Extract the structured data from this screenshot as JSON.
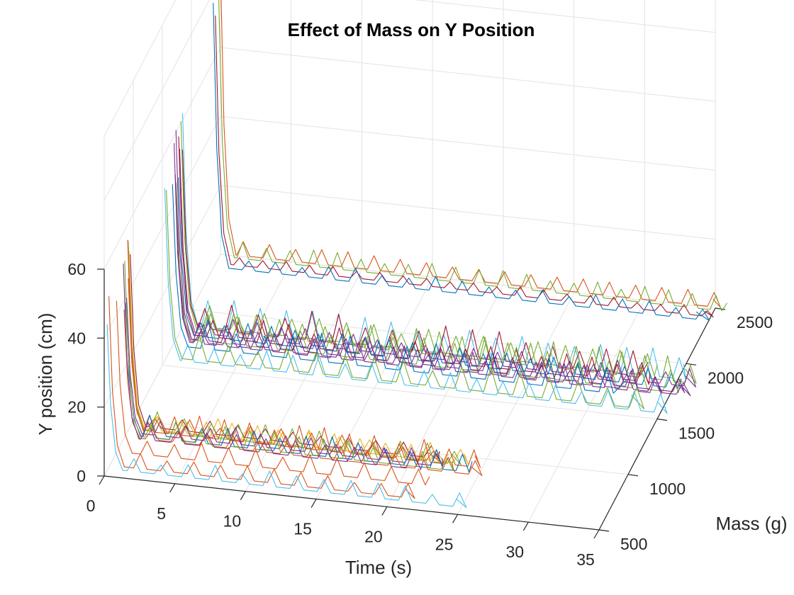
{
  "chart_data": {
    "type": "line",
    "title": "Effect of Mass on  Y Position",
    "xlabel": "Time (s)",
    "ylabel": "Mass (g)",
    "zlabel": "Y position (cm)",
    "xlim": [
      0,
      35
    ],
    "ylim": [
      500,
      2500
    ],
    "zlim": [
      0,
      60
    ],
    "x_ticks": [
      "0",
      "5",
      "10",
      "15",
      "20",
      "25",
      "30",
      "35"
    ],
    "y_ticks": [
      "500",
      "1000",
      "1500",
      "2000",
      "2500"
    ],
    "z_ticks": [
      "0",
      "20",
      "40",
      "60"
    ],
    "grid": true,
    "view": "3d",
    "series_colors": [
      "#0072BD",
      "#D95319",
      "#EDB120",
      "#7E2F8E",
      "#77AC30",
      "#4DBEEE",
      "#A2142F"
    ],
    "groups": [
      {
        "mass_range": [
          550,
          950
        ],
        "line_count": 14,
        "duration_s": [
          21,
          25
        ],
        "initial_y": [
          36,
          58
        ],
        "oscillation_y": [
          0,
          7
        ]
      },
      {
        "mass_range": [
          1450,
          1900
        ],
        "line_count": 14,
        "duration_s": [
          32,
          36
        ],
        "initial_y": [
          45,
          62
        ],
        "oscillation_y": [
          0,
          9
        ]
      },
      {
        "mass_range": [
          2350,
          2500
        ],
        "line_count": 4,
        "duration_s": [
          34,
          36
        ],
        "initial_y": [
          72,
          90
        ],
        "oscillation_y": [
          0,
          5
        ]
      }
    ]
  }
}
